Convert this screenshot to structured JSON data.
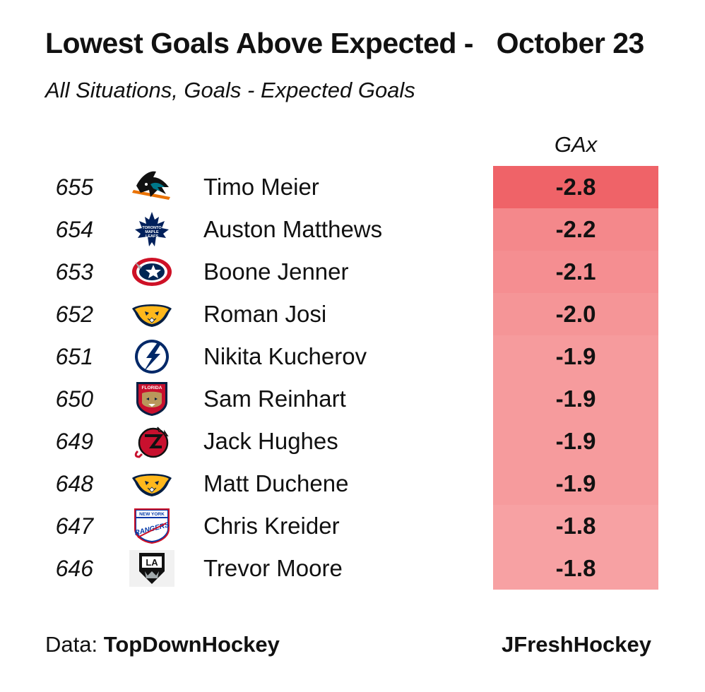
{
  "title": "Lowest Goals Above Expected -   October 23",
  "subtitle": "All Situations, Goals - Expected Goals",
  "footer": {
    "data_prefix": "Data: ",
    "data_source": "TopDownHockey",
    "brand": "JFreshHockey"
  },
  "chart_data": {
    "type": "table",
    "title": "Lowest Goals Above Expected -   October 23",
    "subtitle": "All Situations, Goals - Expected Goals",
    "columns": [
      "GAx"
    ],
    "rows": [
      {
        "rank": "655",
        "team_logo": "sharks-logo-icon",
        "player": "Timo Meier",
        "gax": "-2.8",
        "value": -2.8
      },
      {
        "rank": "654",
        "team_logo": "maple-leafs-logo-icon",
        "player": "Auston Matthews",
        "gax": "-2.2",
        "value": -2.2
      },
      {
        "rank": "653",
        "team_logo": "blue-jackets-logo-icon",
        "player": "Boone Jenner",
        "gax": "-2.1",
        "value": -2.1
      },
      {
        "rank": "652",
        "team_logo": "predators-logo-icon",
        "player": "Roman Josi",
        "gax": "-2.0",
        "value": -2.0
      },
      {
        "rank": "651",
        "team_logo": "lightning-logo-icon",
        "player": "Nikita Kucherov",
        "gax": "-1.9",
        "value": -1.9
      },
      {
        "rank": "650",
        "team_logo": "panthers-logo-icon",
        "player": "Sam Reinhart",
        "gax": "-1.9",
        "value": -1.9
      },
      {
        "rank": "649",
        "team_logo": "devils-logo-icon",
        "player": "Jack Hughes",
        "gax": "-1.9",
        "value": -1.9
      },
      {
        "rank": "648",
        "team_logo": "predators-logo-icon",
        "player": "Matt Duchene",
        "gax": "-1.9",
        "value": -1.9
      },
      {
        "rank": "647",
        "team_logo": "rangers-logo-icon",
        "player": "Chris Kreider",
        "gax": "-1.8",
        "value": -1.8
      },
      {
        "rank": "646",
        "team_logo": "kings-logo-icon",
        "player": "Trevor Moore",
        "gax": "-1.8",
        "value": -1.8
      }
    ],
    "color_scale": {
      "low": "#ef6368",
      "high": "#f7a1a3"
    }
  },
  "logo_text": {
    "leafs": [
      "TORONTO",
      "MAPLE",
      "LEAFS"
    ],
    "panthers": "FLORIDA",
    "rangers": [
      "NEW YORK",
      "RANGERS"
    ],
    "kings": "LA"
  }
}
